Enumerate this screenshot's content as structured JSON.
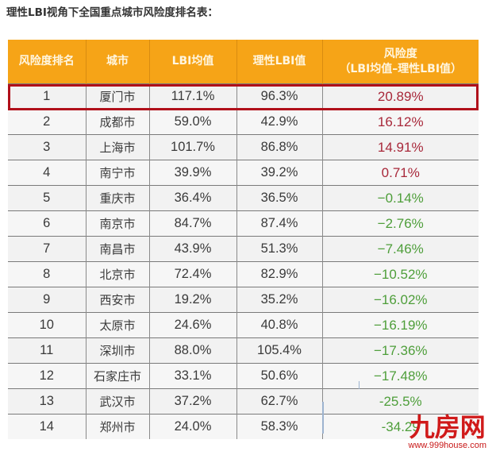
{
  "page": {
    "title": "理性LBI视角下全国重点城市风险度排名表："
  },
  "table": {
    "headers": {
      "rank": "风险度排名",
      "city": "城市",
      "lbi_avg": "LBI均值",
      "rational_lbi": "理性LBI值",
      "risk_line1": "风险度",
      "risk_line2": "（LBI均值–理性LBI值）"
    },
    "rows": [
      {
        "rank": "1",
        "city": "厦门市",
        "lbi_avg": "117.1%",
        "rational_lbi": "96.3%",
        "risk": "20.89%",
        "sign": "pos",
        "highlighted": true
      },
      {
        "rank": "2",
        "city": "成都市",
        "lbi_avg": "59.0%",
        "rational_lbi": "42.9%",
        "risk": "16.12%",
        "sign": "pos"
      },
      {
        "rank": "3",
        "city": "上海市",
        "lbi_avg": "101.7%",
        "rational_lbi": "86.8%",
        "risk": "14.91%",
        "sign": "pos"
      },
      {
        "rank": "4",
        "city": "南宁市",
        "lbi_avg": "39.9%",
        "rational_lbi": "39.2%",
        "risk": "0.71%",
        "sign": "pos"
      },
      {
        "rank": "5",
        "city": "重庆市",
        "lbi_avg": "36.4%",
        "rational_lbi": "36.5%",
        "risk": "−0.14%",
        "sign": "neg"
      },
      {
        "rank": "6",
        "city": "南京市",
        "lbi_avg": "84.7%",
        "rational_lbi": "87.4%",
        "risk": "−2.76%",
        "sign": "neg"
      },
      {
        "rank": "7",
        "city": "南昌市",
        "lbi_avg": "43.9%",
        "rational_lbi": "51.3%",
        "risk": "−7.46%",
        "sign": "neg"
      },
      {
        "rank": "8",
        "city": "北京市",
        "lbi_avg": "72.4%",
        "rational_lbi": "82.9%",
        "risk": "−10.52%",
        "sign": "neg"
      },
      {
        "rank": "9",
        "city": "西安市",
        "lbi_avg": "19.2%",
        "rational_lbi": "35.2%",
        "risk": "−16.02%",
        "sign": "neg"
      },
      {
        "rank": "10",
        "city": "太原市",
        "lbi_avg": "24.6%",
        "rational_lbi": "40.8%",
        "risk": "−16.19%",
        "sign": "neg"
      },
      {
        "rank": "11",
        "city": "深圳市",
        "lbi_avg": "88.0%",
        "rational_lbi": "105.4%",
        "risk": "−17.36%",
        "sign": "neg"
      },
      {
        "rank": "12",
        "city": "石家庄市",
        "lbi_avg": "33.1%",
        "rational_lbi": "50.6%",
        "risk": "−17.48%",
        "sign": "neg"
      },
      {
        "rank": "13",
        "city": "武汉市",
        "lbi_avg": "37.2%",
        "rational_lbi": "62.7%",
        "risk": "-25.5%",
        "sign": "neg"
      },
      {
        "rank": "14",
        "city": "郑州市",
        "lbi_avg": "24.0%",
        "rational_lbi": "58.3%",
        "risk": "-34.29",
        "sign": "neg"
      }
    ]
  },
  "colors": {
    "header_bg": "#F6A417",
    "header_text": "#FFF6E0",
    "highlight_border": "#B0101A",
    "risk_positive": "#A8283A",
    "risk_negative": "#4E9E3A"
  },
  "watermark": {
    "logo": "九房网",
    "url": "www.999house.com"
  }
}
